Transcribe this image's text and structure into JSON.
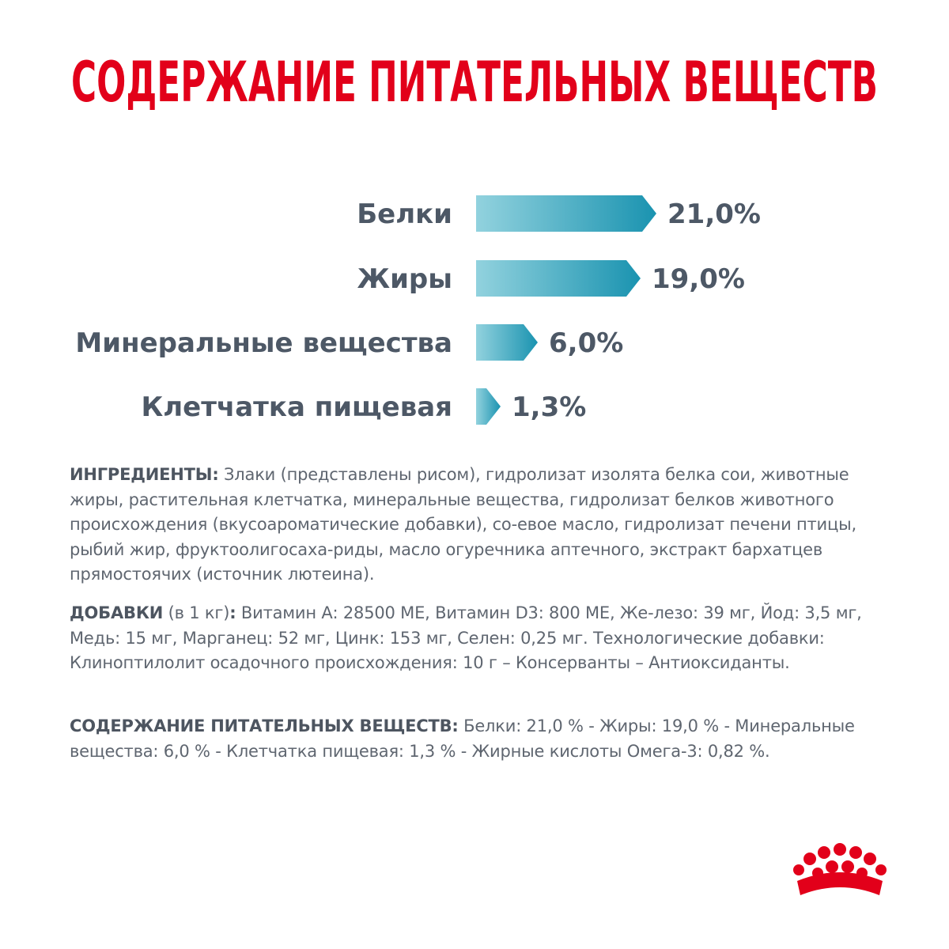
{
  "chart_data": {
    "type": "bar",
    "orientation": "horizontal",
    "title": "СОДЕРЖАНИЕ ПИТАТЕЛЬНЫХ ВЕЩЕСТВ",
    "categories": [
      "Белки",
      "Жиры",
      "Минеральные вещества",
      "Клетчатка пищевая"
    ],
    "values": [
      21.0,
      19.0,
      6.0,
      1.3
    ],
    "value_labels": [
      "21,0%",
      "19,0%",
      "6,0%",
      "1,3%"
    ],
    "color": "#1a93b0"
  },
  "ingredients": {
    "label": "ИНГРЕДИЕНТЫ:",
    "text": "Злаки (представлены рисом), гидролизат изолята белка сои, животные жиры, растительная клетчатка, минеральные вещества, гидролизат белков животного происхождения (вкусоароматические добавки), со-евое масло, гидролизат печени птицы, рыбий жир, фруктоолигосаха-риды, масло огуречника аптечного, экстракт бархатцев прямостоячих (источник лютеина)."
  },
  "supplements": {
    "label": "ДОБАВКИ",
    "note": " (в 1 кг)",
    "colon": ":",
    "text": " Витамин А: 28500 МЕ, Витамин D3: 800 МЕ, Же-лезо: 39 мг, Йод: 3,5 мг, Медь: 15 мг, Марганец: 52 мг, Цинк: 153  мг, Селен: 0,25 мг. Технологические добавки: Клиноптилолит осадочного происхождения: 10 г – Консерванты – Антиоксиданты."
  },
  "nutrients": {
    "label": "СОДЕРЖАНИЕ ПИТАТЕЛЬНЫХ ВЕЩЕСТВ:",
    "text": " Белки: 21,0 % - Жиры: 19,0 % - Минеральные вещества: 6,0 %  - Клетчатка пищевая: 1,3 % - Жирные кислоты Омега-3: 0,82 %."
  }
}
